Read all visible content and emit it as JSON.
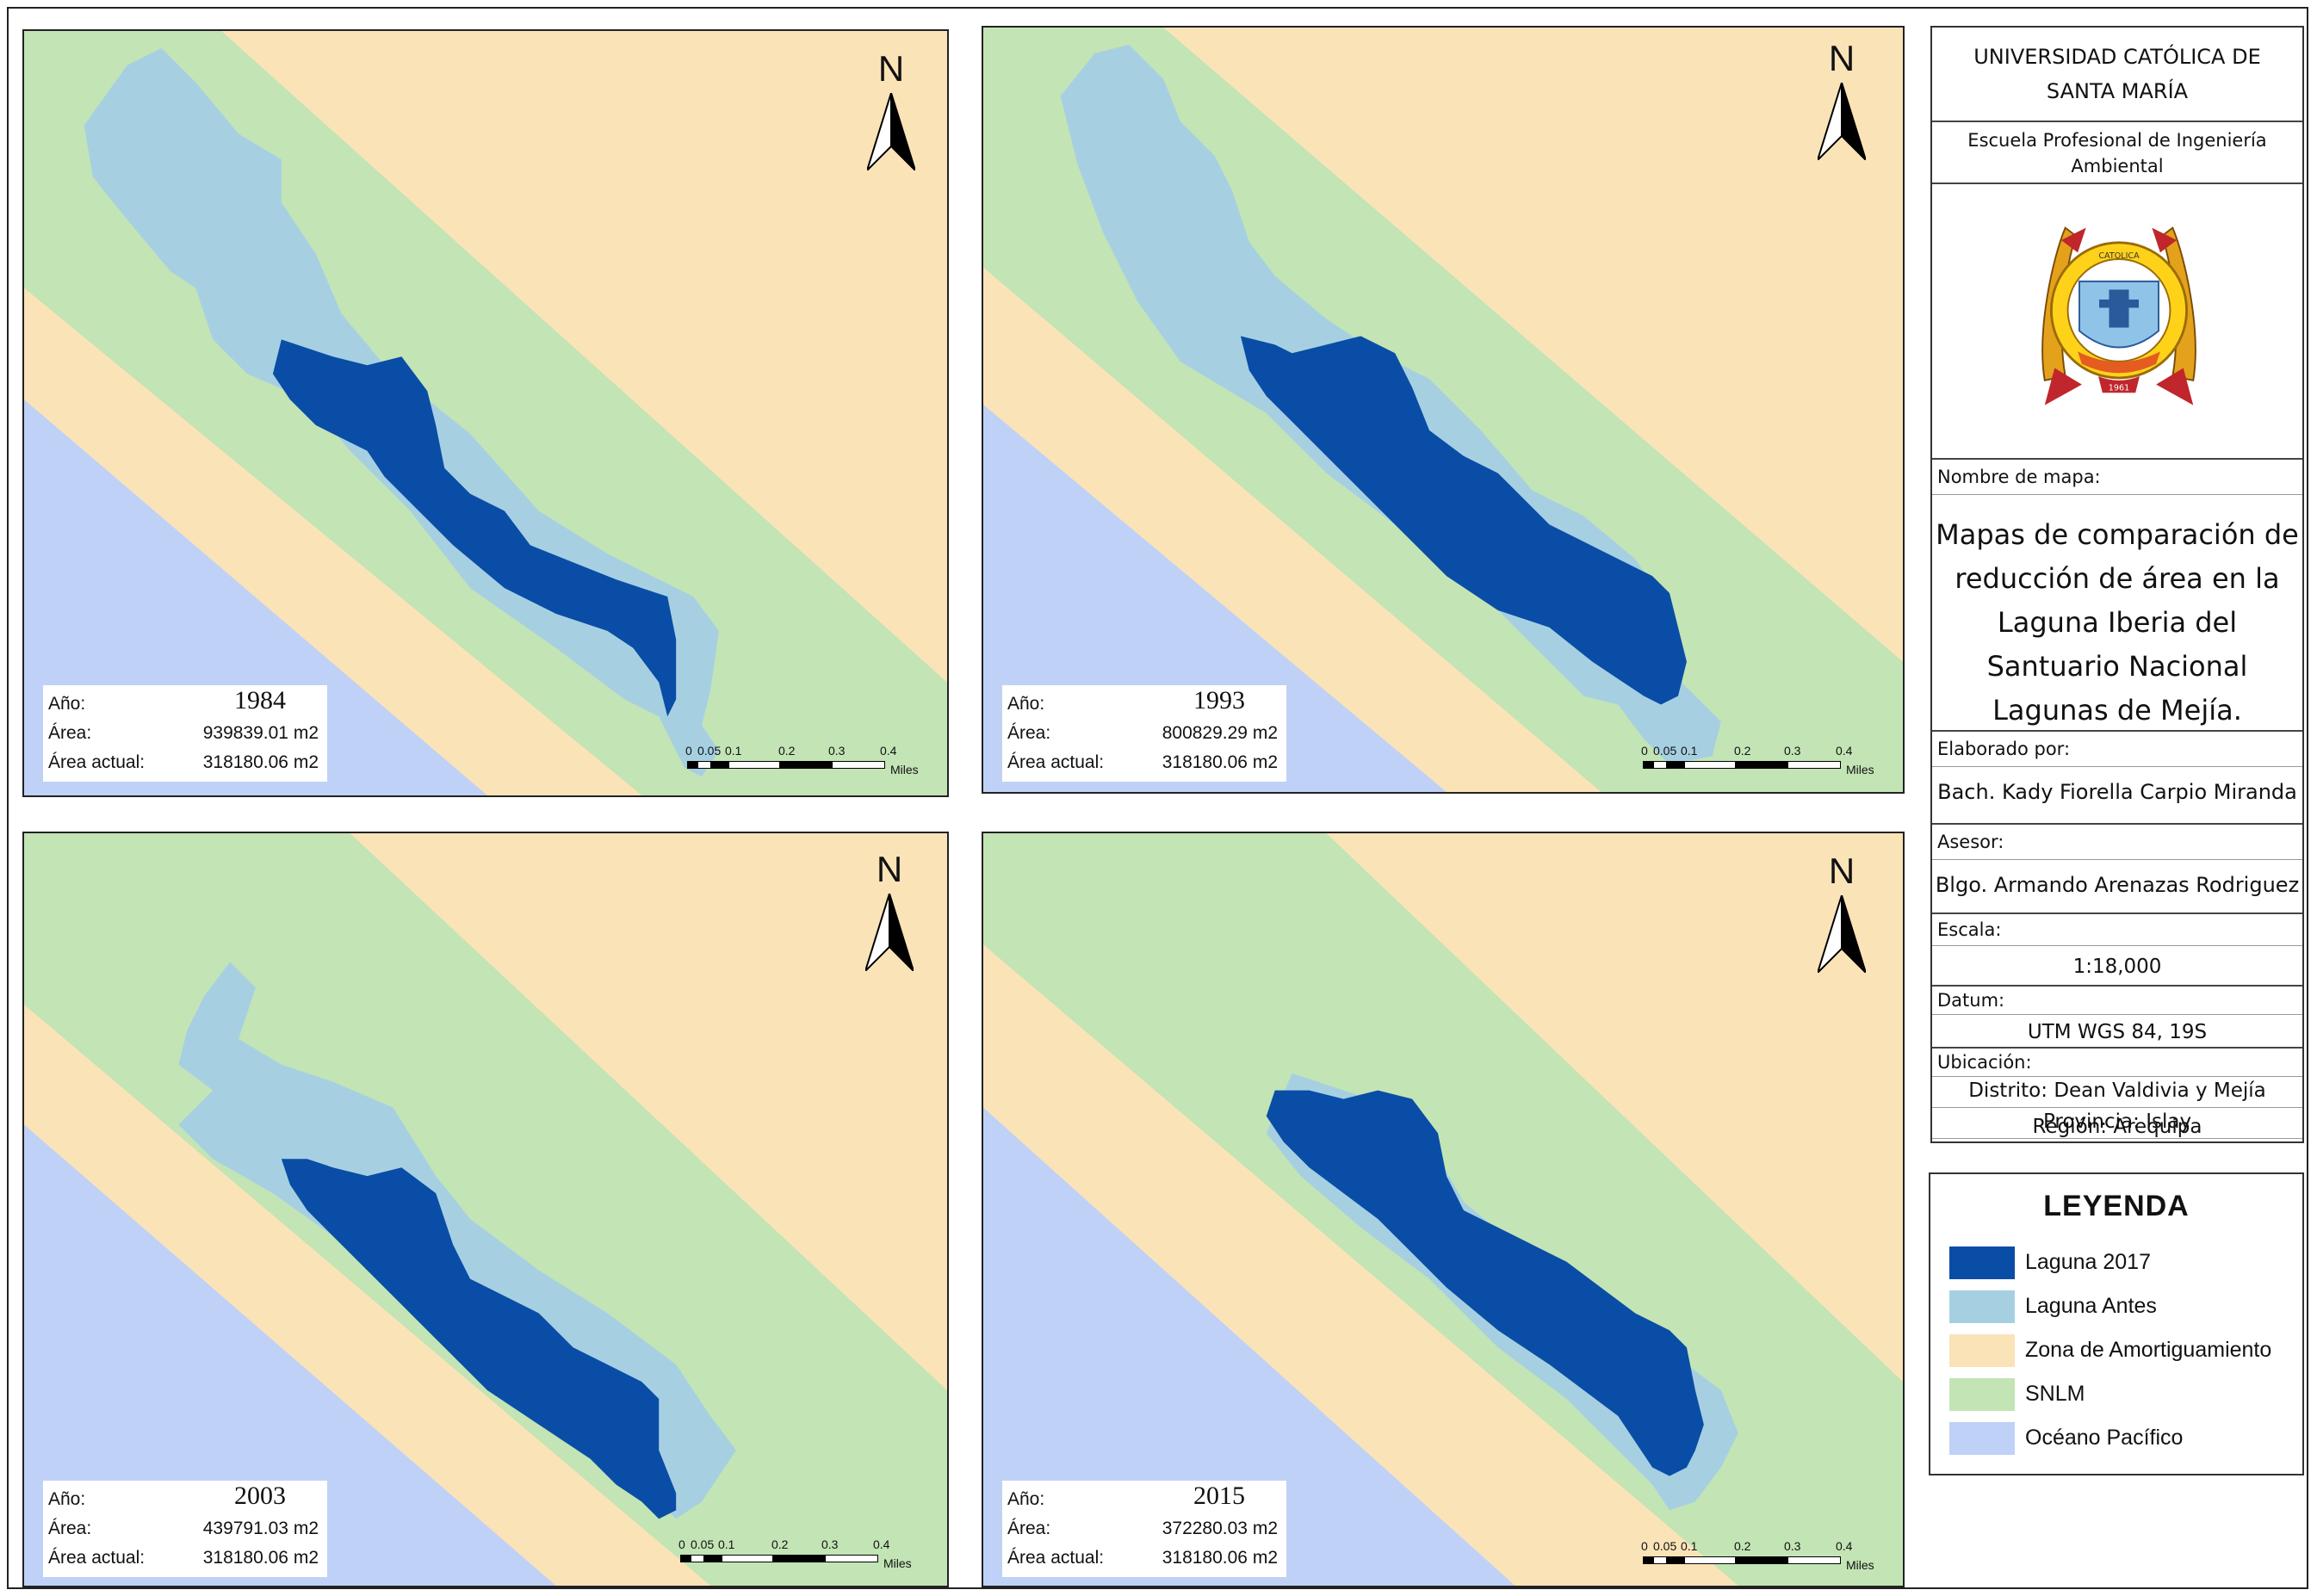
{
  "colors": {
    "laguna_2017": "#0a4da6",
    "laguna_antes": "#a6d0e2",
    "zona_amortiguamiento": "#fbe3b8",
    "snlm": "#c3e4b5",
    "oceano_pacifico": "#bfd1f6"
  },
  "panels": [
    {
      "year": "1984",
      "area_label": "Área:",
      "area": "939839.01 m2",
      "actual_label": "Área actual:",
      "actual": "318180.06 m2",
      "anio_label": "Año:"
    },
    {
      "year": "1993",
      "area_label": "Área:",
      "area": "800829.29 m2",
      "actual_label": "Área actual:",
      "actual": "318180.06 m2",
      "anio_label": "Año:"
    },
    {
      "year": "2003",
      "area_label": "Área:",
      "area": "439791.03 m2",
      "actual_label": "Área actual:",
      "actual": "318180.06 m2",
      "anio_label": "Año:"
    },
    {
      "year": "2015",
      "area_label": "Área:",
      "area": "372280.03 m2",
      "actual_label": "Área actual:",
      "actual": "318180.06 m2",
      "anio_label": "Año:"
    }
  ],
  "north_label": "N",
  "scale": {
    "ticks": [
      "0",
      "0.05",
      "0.1",
      "0.2",
      "0.3",
      "0.4"
    ],
    "unit": "Miles"
  },
  "title_block": {
    "university": "UNIVERSIDAD CATÓLICA DE SANTA MARÍA",
    "school": "Escuela Profesional de Ingeniería Ambiental",
    "map_name_label": "Nombre de mapa:",
    "map_name": "Mapas de comparación de reducción de área en la Laguna Iberia del Santuario Nacional Lagunas de Mejía.",
    "author_label": "Elaborado por:",
    "author": "Bach. Kady Fiorella Carpio Miranda",
    "advisor_label": "Asesor:",
    "advisor": "Blgo. Armando Arenazas Rodriguez",
    "scale_label": "Escala:",
    "scale": "1:18,000",
    "datum_label": "Datum:",
    "datum": "UTM WGS 84, 19S",
    "location_label": "Ubicación:",
    "district": "Distrito: Dean Valdivia y Mejía",
    "province": "Provincia: Islay",
    "region": "Región: Arequipa"
  },
  "legend": {
    "title": "LEYENDA",
    "items": [
      {
        "label": "Laguna 2017",
        "color": "#0a4da6"
      },
      {
        "label": "Laguna Antes",
        "color": "#a6d0e2"
      },
      {
        "label": "Zona de Amortiguamiento",
        "color": "#fbe3b8"
      },
      {
        "label": "SNLM",
        "color": "#c3e4b5"
      },
      {
        "label": "Océano Pacífico",
        "color": "#bfd1f6"
      }
    ]
  }
}
